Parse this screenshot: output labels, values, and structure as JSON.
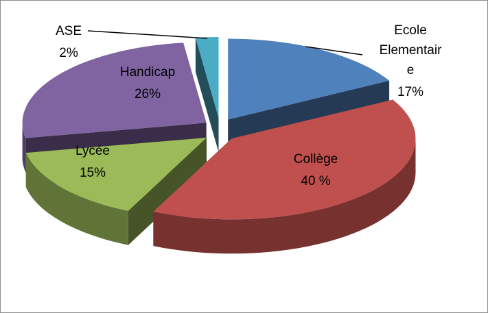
{
  "chart_data": {
    "type": "pie3d",
    "categories": [
      "Ecole Elementaire",
      "Collège",
      "Lycée",
      "Handicap",
      "ASE"
    ],
    "values": [
      17,
      40,
      15,
      26,
      2
    ],
    "value_labels": [
      "17%",
      "40 %",
      "15%",
      "26%",
      "2%"
    ],
    "colors": [
      "#4f81bd",
      "#c0504d",
      "#9bbb59",
      "#8064a2",
      "#4bacc6"
    ]
  }
}
